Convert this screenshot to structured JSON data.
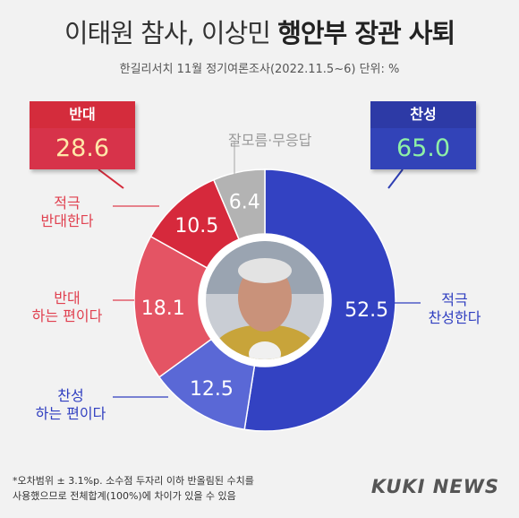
{
  "title": {
    "normal": "이태원 참사, 이상민 ",
    "bold": "행안부 장관 사퇴"
  },
  "subtitle": "한길리서치 11월 정기여론조사(2022.11.5~6) 단위: %",
  "oppose_box": {
    "label": "반대",
    "value": "28.6"
  },
  "approve_box": {
    "label": "찬성",
    "value": "65.0"
  },
  "segment_labels": {
    "dontknow": "잘모름·무응답",
    "strong_approve": [
      "적극",
      "찬성한다"
    ],
    "approve_somewhat": [
      "찬성",
      "하는 편이다"
    ],
    "oppose_somewhat": [
      "반대",
      "하는 편이다"
    ],
    "strong_oppose": [
      "적극",
      "반대한다"
    ]
  },
  "footnote": [
    "*오차범위 ± 3.1%p. 소수점 두자리 이하 반올림된 수치를",
    "사용했으므로 전체합계(100%)에 차이가 있을 수 있음"
  ],
  "logo": "KUKI NEWS",
  "colors": {
    "strong_approve": "#3342c2",
    "approve_somewhat": "#5a68d6",
    "oppose_somewhat": "#e45464",
    "strong_oppose": "#d6293c",
    "dontknow": "#b3b3b3",
    "blue_text": "#2f3ec0",
    "red_text": "#e0404f"
  },
  "chart_data": {
    "type": "pie",
    "categories": [
      "적극 찬성한다",
      "찬성 하는 편이다",
      "반대 하는 편이다",
      "적극 반대한다",
      "잘모름·무응답"
    ],
    "values": [
      52.5,
      12.5,
      18.1,
      10.5,
      6.4
    ],
    "totals": {
      "찬성": 65.0,
      "반대": 28.6
    }
  }
}
